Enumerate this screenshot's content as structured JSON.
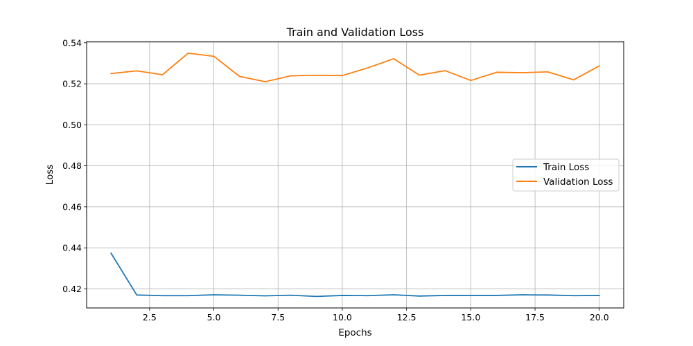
{
  "chart_data": {
    "type": "line",
    "title": "Train and Validation Loss",
    "xlabel": "Epochs",
    "ylabel": "Loss",
    "xlim": [
      0.05,
      20.95
    ],
    "ylim": [
      0.4107,
      0.5406
    ],
    "xticks": [
      2.5,
      5.0,
      7.5,
      10.0,
      12.5,
      15.0,
      17.5,
      20.0
    ],
    "xtick_labels": [
      "2.5",
      "5.0",
      "7.5",
      "10.0",
      "12.5",
      "15.0",
      "17.5",
      "20.0"
    ],
    "yticks": [
      0.42,
      0.44,
      0.46,
      0.48,
      0.5,
      0.52,
      0.54
    ],
    "ytick_labels": [
      "0.42",
      "0.44",
      "0.46",
      "0.48",
      "0.50",
      "0.52",
      "0.54"
    ],
    "grid": true,
    "legend_position": "center-right",
    "x": [
      1,
      2,
      3,
      4,
      5,
      6,
      7,
      8,
      9,
      10,
      11,
      12,
      13,
      14,
      15,
      16,
      17,
      18,
      19,
      20
    ],
    "series": [
      {
        "name": "Train Loss",
        "color": "#1f77b4",
        "values": [
          0.4374,
          0.417,
          0.4167,
          0.4167,
          0.4171,
          0.4169,
          0.4166,
          0.4169,
          0.4163,
          0.4168,
          0.4167,
          0.4171,
          0.4165,
          0.4168,
          0.4168,
          0.4168,
          0.4171,
          0.417,
          0.4167,
          0.4168
        ]
      },
      {
        "name": "Validation Loss",
        "color": "#ff7f0e",
        "values": [
          0.525,
          0.5263,
          0.5244,
          0.5349,
          0.5334,
          0.5236,
          0.521,
          0.5239,
          0.5241,
          0.524,
          0.5278,
          0.5322,
          0.5242,
          0.5264,
          0.5216,
          0.5256,
          0.5254,
          0.5258,
          0.5219,
          0.5287
        ]
      }
    ]
  }
}
